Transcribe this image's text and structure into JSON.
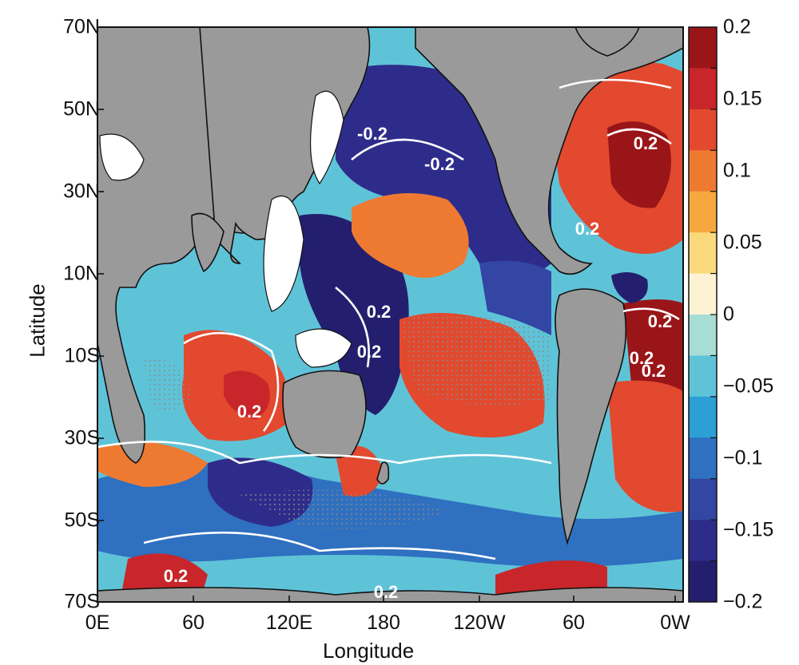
{
  "map": {
    "y_axis_title": "Latitude",
    "x_axis_title": "Longitude",
    "lat_ticks": [
      "70N",
      "50N",
      "30N",
      "10N",
      "10S",
      "30S",
      "50S",
      "70S"
    ],
    "lon_ticks": [
      "0E",
      "60",
      "120E",
      "180",
      "120W",
      "60",
      "0W"
    ],
    "contour_labels": [
      "-0.2",
      "-0.2",
      "0.2",
      "0.2",
      "0.2",
      "0.2",
      "0.2",
      "0.2",
      "0.2",
      "0.2",
      "0.2",
      "0.2"
    ],
    "land_color": "#9a9a9a",
    "stippling": true
  },
  "colorbar": {
    "tick_labels": [
      "0.2",
      "0.15",
      "0.1",
      "0.05",
      "0",
      "−0.05",
      "−0.1",
      "−0.15",
      "−0.2"
    ],
    "levels": [
      0.2,
      0.15,
      0.1,
      0.05,
      0,
      -0.05,
      -0.1,
      -0.15,
      -0.2
    ],
    "colors": [
      "#9a1518",
      "#c8262a",
      "#e2492e",
      "#ee7a32",
      "#f6a83e",
      "#fad87c",
      "#fdf3d4",
      "#a8ddd5",
      "#5fc3d8",
      "#2b9fd6",
      "#2f70c0",
      "#3346a4",
      "#2e2c8b",
      "#231f6e"
    ]
  }
}
